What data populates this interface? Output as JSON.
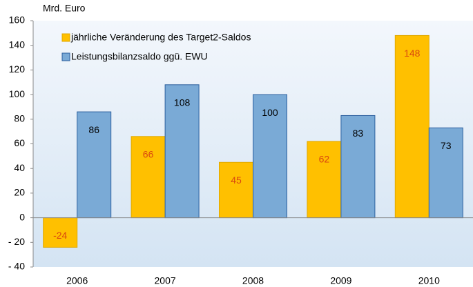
{
  "chart_data": {
    "type": "bar",
    "y_unit_label": "Mrd. Euro",
    "categories": [
      "2006",
      "2007",
      "2008",
      "2009",
      "2010"
    ],
    "series": [
      {
        "name": "jährliche Veränderung des Target2-Saldos",
        "color": "#ffc000",
        "label_color": "#d9480f",
        "values": [
          -24,
          66,
          45,
          62,
          148
        ]
      },
      {
        "name": "Leistungsbilanzsaldo ggü. EWU",
        "color": "#7aaad6",
        "label_color": "#000000",
        "values": [
          86,
          108,
          100,
          83,
          73
        ]
      }
    ],
    "ylim": [
      -40,
      160
    ],
    "yticks": [
      {
        "value": -40,
        "label": "- 40"
      },
      {
        "value": -20,
        "label": "- 20"
      },
      0,
      20,
      40,
      60,
      80,
      100,
      120,
      140,
      160
    ],
    "grid": false,
    "legend": "upper left"
  }
}
